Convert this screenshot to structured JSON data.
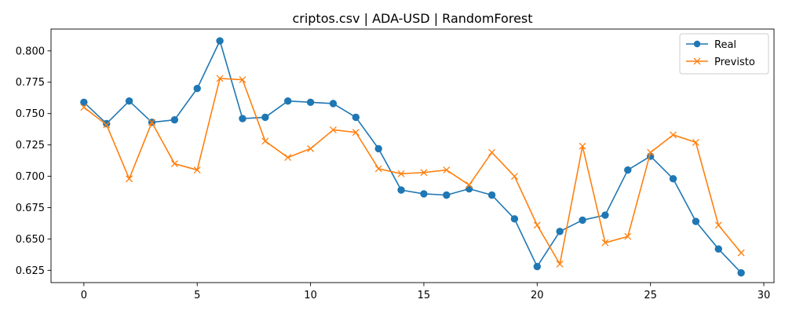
{
  "chart_data": {
    "type": "line",
    "title": "criptos.csv | ADA-USD | RandomForest",
    "xlabel": "",
    "ylabel": "",
    "x": [
      0,
      1,
      2,
      3,
      4,
      5,
      6,
      7,
      8,
      9,
      10,
      11,
      12,
      13,
      14,
      15,
      16,
      17,
      18,
      19,
      20,
      21,
      22,
      23,
      24,
      25,
      26,
      27,
      28,
      29
    ],
    "xlim": [
      -1.45,
      30.45
    ],
    "ylim": [
      0.6152,
      0.8174
    ],
    "xticks": [
      0,
      5,
      10,
      15,
      20,
      25,
      30
    ],
    "xtick_labels": [
      "0",
      "5",
      "10",
      "15",
      "20",
      "25",
      "30"
    ],
    "yticks": [
      0.625,
      0.65,
      0.675,
      0.7,
      0.725,
      0.75,
      0.775,
      0.8
    ],
    "ytick_labels": [
      "0.625",
      "0.650",
      "0.675",
      "0.700",
      "0.725",
      "0.750",
      "0.775",
      "0.800"
    ],
    "grid": false,
    "legend_position": "top-right",
    "series": [
      {
        "name": "Real",
        "color": "#1f77b4",
        "marker": "circle",
        "values": [
          0.759,
          0.742,
          0.76,
          0.743,
          0.745,
          0.77,
          0.808,
          0.746,
          0.747,
          0.76,
          0.759,
          0.758,
          0.747,
          0.722,
          0.689,
          0.686,
          0.685,
          0.69,
          0.685,
          0.666,
          0.628,
          0.656,
          0.665,
          0.669,
          0.705,
          0.716,
          0.698,
          0.664,
          0.642,
          0.623
        ]
      },
      {
        "name": "Previsto",
        "color": "#ff7f0e",
        "marker": "x",
        "values": [
          0.755,
          0.741,
          0.698,
          0.743,
          0.71,
          0.705,
          0.778,
          0.777,
          0.728,
          0.715,
          0.722,
          0.737,
          0.735,
          0.706,
          0.702,
          0.703,
          0.705,
          0.693,
          0.719,
          0.7,
          0.661,
          0.63,
          0.724,
          0.647,
          0.652,
          0.719,
          0.733,
          0.727,
          0.661,
          0.639
        ]
      }
    ]
  }
}
